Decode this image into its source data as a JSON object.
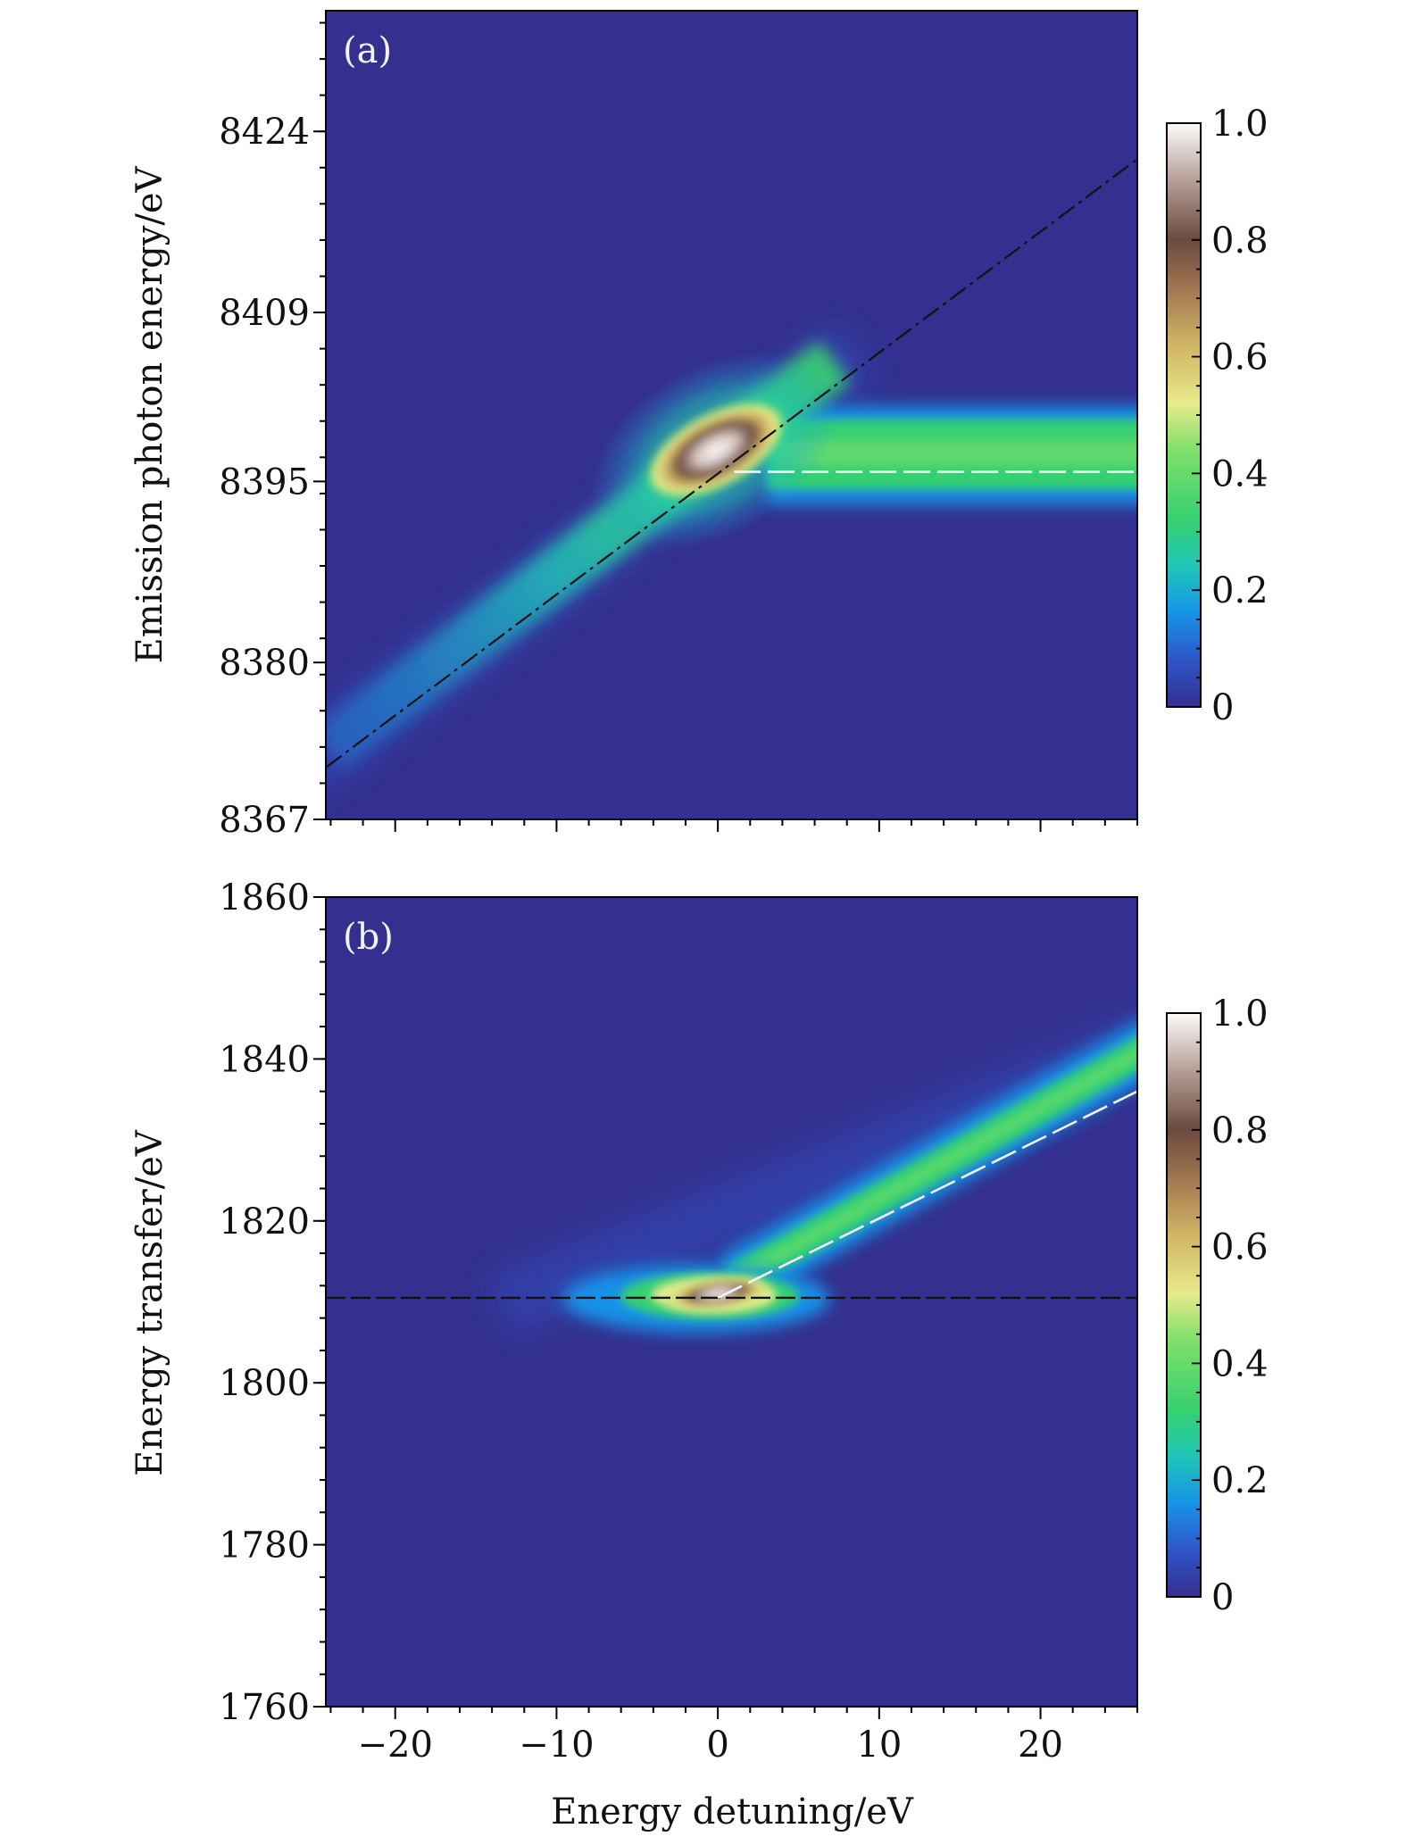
{
  "figure": {
    "x_axis": {
      "label": "Energy detuning/eV",
      "range": [
        -24.3,
        26
      ],
      "ticks": [
        -20,
        -10,
        0,
        10,
        20
      ],
      "tick_labels": [
        "−20",
        "−10",
        "0",
        "10",
        "20"
      ]
    }
  },
  "chart_data": [
    {
      "type": "heatmap",
      "panel_label": "(a)",
      "xlabel": "Energy detuning/eV",
      "ylabel": "Emission photon energy/eV",
      "xlim": [
        -24.3,
        26
      ],
      "ylim": [
        8367,
        8434
      ],
      "yticks": [
        8367,
        8380,
        8395,
        8409,
        8424
      ],
      "colorbar": {
        "range": [
          0,
          1.0
        ],
        "ticks": [
          0,
          0.2,
          0.4,
          0.6,
          0.8,
          1.0
        ],
        "tick_labels": [
          "0",
          "0.2",
          "0.4",
          "0.6",
          "0.8",
          "1.0"
        ]
      },
      "features": {
        "diagonal_branch": {
          "slope": 1,
          "intercept": 8395.8,
          "x_range": [
            -24.3,
            7.5
          ]
        },
        "horizontal_branch": {
          "y": 8395.8,
          "x_range": [
            1,
            26
          ]
        },
        "peak": {
          "x": -1,
          "y": 8395.5,
          "value": 1.0
        }
      },
      "reference_lines": [
        {
          "style": "black-dashed",
          "points": [
            [
              -24.3,
              8371.3
            ],
            [
              26,
              8421.7
            ]
          ]
        },
        {
          "style": "white-dashed",
          "points": [
            [
              1,
              8395.8
            ],
            [
              26,
              8395.8
            ]
          ]
        }
      ]
    },
    {
      "type": "heatmap",
      "panel_label": "(b)",
      "xlabel": "Energy detuning/eV",
      "ylabel": "Energy transfer/eV",
      "xlim": [
        -24.3,
        26
      ],
      "ylim": [
        1760,
        1860
      ],
      "yticks": [
        1760,
        1780,
        1800,
        1820,
        1840,
        1860
      ],
      "colorbar": {
        "range": [
          0,
          1.0
        ],
        "ticks": [
          0,
          0.2,
          0.4,
          0.6,
          0.8,
          1.0
        ],
        "tick_labels": [
          "0",
          "0.2",
          "0.4",
          "0.6",
          "0.8",
          "1.0"
        ]
      },
      "features": {
        "horizontal_branch": {
          "y": 1810.5,
          "x_range": [
            -10,
            3
          ]
        },
        "diagonal_branch": {
          "slope": 1,
          "intercept": 1810.5,
          "x_range": [
            3,
            26
          ]
        },
        "peak": {
          "x": -1,
          "y": 1811,
          "value": 1.0
        }
      },
      "reference_lines": [
        {
          "style": "black-dashed",
          "points": [
            [
              -24.3,
              1810.5
            ],
            [
              26,
              1810.5
            ]
          ]
        },
        {
          "style": "white-dashed",
          "points": [
            [
              0,
              1810.5
            ],
            [
              26,
              1836
            ]
          ]
        }
      ]
    }
  ]
}
